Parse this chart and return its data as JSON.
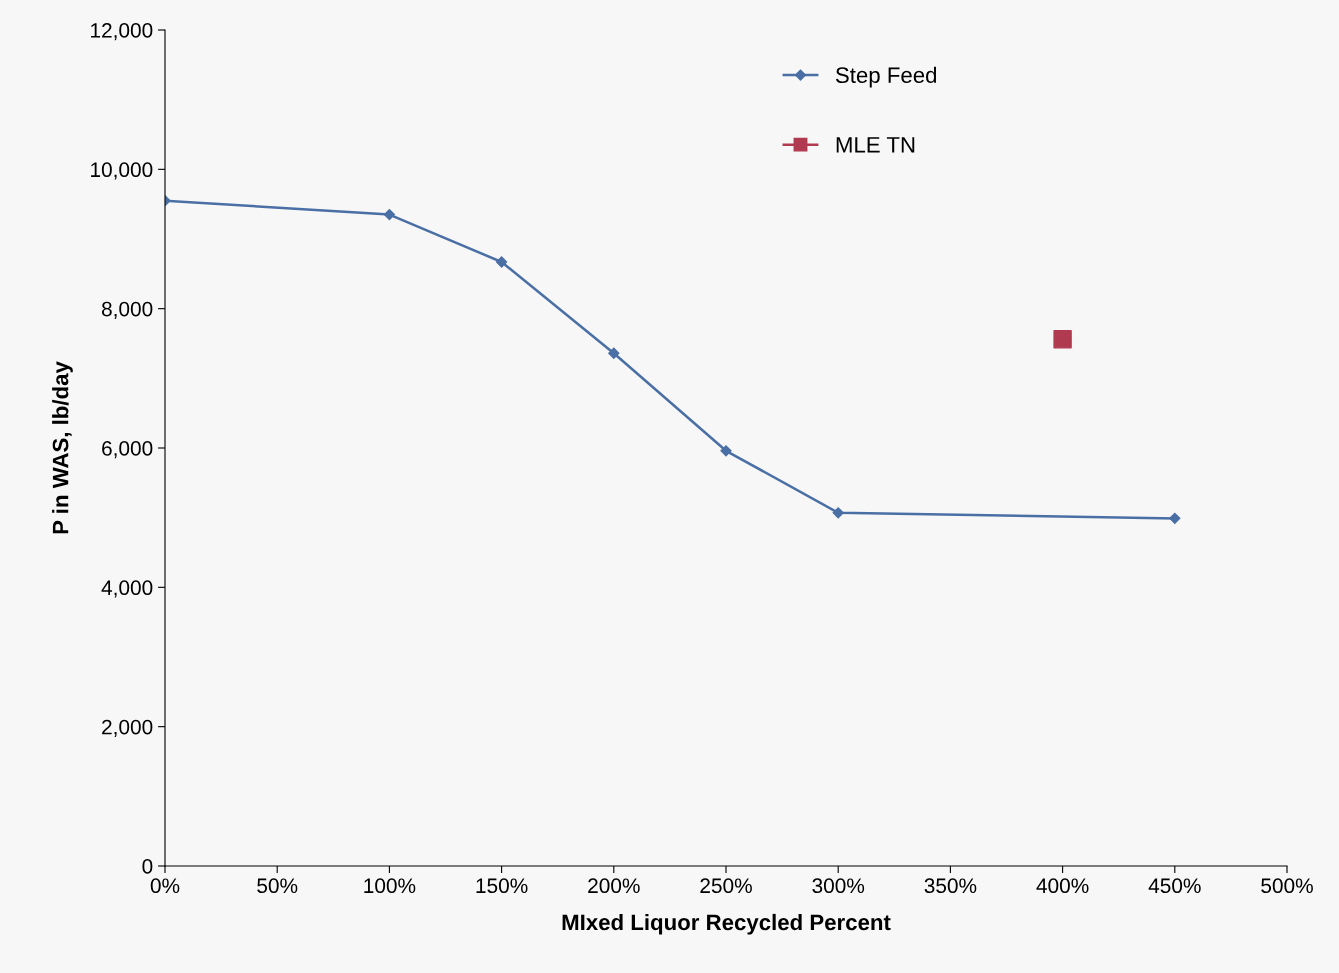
{
  "chart_data": {
    "type": "line",
    "xlabel": "MIxed Liquor Recycled Percent",
    "ylabel": "P in WAS, lb/day",
    "series": [
      {
        "name": "Step Feed",
        "color": "#4a6fa5",
        "marker": "diamond",
        "x": [
          0,
          100,
          150,
          200,
          250,
          300,
          450
        ],
        "values": [
          9550,
          9350,
          8670,
          7360,
          5960,
          5070,
          4990
        ]
      },
      {
        "name": "MLE TN",
        "type": "scatter",
        "color": "#b03a50",
        "marker": "square",
        "x": [
          400
        ],
        "values": [
          7560
        ]
      }
    ],
    "xlim": [
      0,
      500
    ],
    "xticks": [
      {
        "value": 0,
        "label": "0%"
      },
      {
        "value": 50,
        "label": "50%"
      },
      {
        "value": 100,
        "label": "100%"
      },
      {
        "value": 150,
        "label": "150%"
      },
      {
        "value": 200,
        "label": "200%"
      },
      {
        "value": 250,
        "label": "250%"
      },
      {
        "value": 300,
        "label": "300%"
      },
      {
        "value": 350,
        "label": "350%"
      },
      {
        "value": 400,
        "label": "400%"
      },
      {
        "value": 450,
        "label": "450%"
      },
      {
        "value": 500,
        "label": "500%"
      }
    ],
    "ylim": [
      0,
      12000
    ],
    "yticks": [
      {
        "value": 0,
        "label": "0"
      },
      {
        "value": 2000,
        "label": "2,000"
      },
      {
        "value": 4000,
        "label": "4,000"
      },
      {
        "value": 6000,
        "label": "6,000"
      },
      {
        "value": 8000,
        "label": "8,000"
      },
      {
        "value": 10000,
        "label": "10,000"
      },
      {
        "value": 12000,
        "label": "12,000"
      }
    ],
    "legend": "top",
    "grid": false
  }
}
